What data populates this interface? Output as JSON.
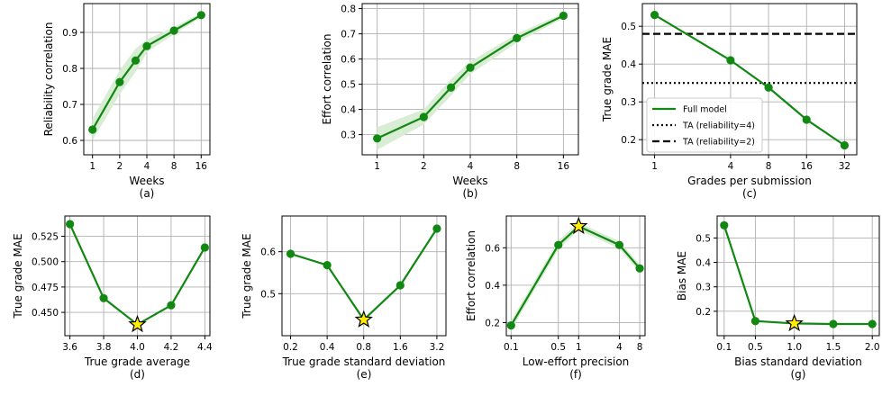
{
  "colors": {
    "line": "#118811",
    "band": "#d9ecd4",
    "grid": "#b0b0b0",
    "star_fill": "#ffee00",
    "star_edge": "#000000",
    "ref_line": "#000000"
  },
  "chart_data": [
    {
      "id": "a",
      "type": "line",
      "caption": "(a)",
      "xlabel": "Weeks",
      "ylabel": "Reliability correlation",
      "xscale": "log2",
      "xlim": [
        0.8,
        20
      ],
      "ylim": [
        0.56,
        0.98
      ],
      "xticks": [
        1,
        2,
        4,
        8,
        16
      ],
      "xtick_labels": [
        "1",
        "2",
        "4",
        "8",
        "16"
      ],
      "yticks": [
        0.6,
        0.7,
        0.8,
        0.9
      ],
      "ytick_labels": [
        "0.6",
        "0.7",
        "0.8",
        "0.9"
      ],
      "grid": true,
      "series": [
        {
          "x": [
            1,
            2,
            3,
            4,
            8,
            16
          ],
          "y": [
            0.63,
            0.762,
            0.822,
            0.862,
            0.905,
            0.948
          ],
          "band_low": [
            0.6,
            0.728,
            0.79,
            0.845,
            0.895,
            0.942
          ],
          "band_high": [
            0.66,
            0.795,
            0.855,
            0.88,
            0.915,
            0.954
          ]
        }
      ]
    },
    {
      "id": "b",
      "type": "line",
      "caption": "(b)",
      "xlabel": "Weeks",
      "ylabel": "Effort correlation",
      "xscale": "log2",
      "xlim": [
        0.8,
        20
      ],
      "ylim": [
        0.22,
        0.82
      ],
      "xticks": [
        1,
        2,
        4,
        8,
        16
      ],
      "xtick_labels": [
        "1",
        "2",
        "4",
        "8",
        "16"
      ],
      "yticks": [
        0.3,
        0.4,
        0.5,
        0.6,
        0.7,
        0.8
      ],
      "ytick_labels": [
        "0.3",
        "0.4",
        "0.5",
        "0.6",
        "0.7",
        "0.8"
      ],
      "grid": true,
      "series": [
        {
          "x": [
            1,
            2,
            3,
            4,
            8,
            16
          ],
          "y": [
            0.285,
            0.37,
            0.487,
            0.566,
            0.683,
            0.772
          ],
          "band_low": [
            0.24,
            0.34,
            0.455,
            0.54,
            0.665,
            0.762
          ],
          "band_high": [
            0.33,
            0.4,
            0.52,
            0.59,
            0.7,
            0.782
          ]
        }
      ]
    },
    {
      "id": "c",
      "type": "line",
      "caption": "(c)",
      "xlabel": "Grades per submission",
      "ylabel": "True grade MAE",
      "xscale": "log2",
      "xlim": [
        0.8,
        40
      ],
      "ylim": [
        0.16,
        0.56
      ],
      "xticks": [
        1,
        4,
        8,
        16,
        32
      ],
      "xtick_labels": [
        "1",
        "4",
        "8",
        "16",
        "32"
      ],
      "yticks": [
        0.2,
        0.3,
        0.4,
        0.5
      ],
      "ytick_labels": [
        "0.2",
        "0.3",
        "0.4",
        "0.5"
      ],
      "grid": true,
      "series": [
        {
          "name": "Full model",
          "x": [
            1,
            4,
            8,
            16,
            32
          ],
          "y": [
            0.53,
            0.41,
            0.338,
            0.253,
            0.185
          ]
        }
      ],
      "hlines": [
        {
          "name": "TA (reliability=4)",
          "y": 0.35,
          "style": "dotted"
        },
        {
          "name": "TA (reliability=2)",
          "y": 0.48,
          "style": "dashed"
        }
      ],
      "legend": "lower-left"
    },
    {
      "id": "d",
      "type": "line",
      "caption": "(d)",
      "xlabel": "True grade average",
      "ylabel": "True grade MAE",
      "xscale": "linear",
      "xlim": [
        3.57,
        4.43
      ],
      "ylim": [
        0.427,
        0.545
      ],
      "xticks": [
        3.6,
        3.8,
        4.0,
        4.2,
        4.4
      ],
      "xtick_labels": [
        "3.6",
        "3.8",
        "4.0",
        "4.2",
        "4.4"
      ],
      "yticks": [
        0.45,
        0.475,
        0.5,
        0.525
      ],
      "ytick_labels": [
        "0.450",
        "0.475",
        "0.500",
        "0.525"
      ],
      "grid": true,
      "series": [
        {
          "x": [
            3.6,
            3.8,
            4.0,
            4.2,
            4.4
          ],
          "y": [
            0.537,
            0.464,
            0.438,
            0.457,
            0.514
          ],
          "star_index": 2
        }
      ]
    },
    {
      "id": "e",
      "type": "line",
      "caption": "(e)",
      "xlabel": "True grade standard deviation",
      "ylabel": "True grade MAE",
      "xscale": "log2",
      "xlim": [
        0.17,
        3.8
      ],
      "ylim": [
        0.4,
        0.685
      ],
      "xticks": [
        0.2,
        0.4,
        0.8,
        1.6,
        3.2
      ],
      "xtick_labels": [
        "0.2",
        "0.4",
        "0.8",
        "1.6",
        "3.2"
      ],
      "yticks": [
        0.5,
        0.6
      ],
      "ytick_labels": [
        "0.5",
        "0.6"
      ],
      "grid": true,
      "series": [
        {
          "x": [
            0.2,
            0.4,
            0.8,
            1.6,
            3.2
          ],
          "y": [
            0.595,
            0.568,
            0.438,
            0.52,
            0.655
          ],
          "star_index": 2
        }
      ]
    },
    {
      "id": "f",
      "type": "line",
      "caption": "(f)",
      "xlabel": "Low-effort precision",
      "ylabel": "Effort correlation",
      "xscale": "log2",
      "xlim": [
        0.085,
        9.6
      ],
      "ylim": [
        0.13,
        0.77
      ],
      "xticks": [
        0.1,
        0.5,
        1,
        4,
        8
      ],
      "xtick_labels": [
        "0.1",
        "0.5",
        "1",
        "4",
        "8"
      ],
      "yticks": [
        0.2,
        0.4,
        0.6
      ],
      "ytick_labels": [
        "0.2",
        "0.4",
        "0.6"
      ],
      "grid": true,
      "series": [
        {
          "x": [
            0.1,
            0.5,
            1,
            4,
            8
          ],
          "y": [
            0.185,
            0.615,
            0.715,
            0.615,
            0.49
          ],
          "band_low": [
            0.16,
            0.59,
            0.695,
            0.595,
            0.47
          ],
          "band_high": [
            0.21,
            0.64,
            0.735,
            0.635,
            0.51
          ],
          "star_index": 2
        }
      ]
    },
    {
      "id": "g",
      "type": "line",
      "caption": "(g)",
      "xlabel": "Bias standard deviation",
      "ylabel": "Bias MAE",
      "xscale": "linear",
      "xlim": [
        0.01,
        2.09
      ],
      "ylim": [
        0.1,
        0.59
      ],
      "xticks": [
        0.1,
        0.5,
        1.0,
        1.5,
        2.0
      ],
      "xtick_labels": [
        "0.1",
        "0.5",
        "1.0",
        "1.5",
        "2.0"
      ],
      "yticks": [
        0.2,
        0.3,
        0.4,
        0.5
      ],
      "ytick_labels": [
        "0.2",
        "0.3",
        "0.4",
        "0.5"
      ],
      "grid": true,
      "series": [
        {
          "x": [
            0.1,
            0.5,
            1.0,
            1.5,
            2.0
          ],
          "y": [
            0.552,
            0.16,
            0.15,
            0.148,
            0.148
          ],
          "star_index": 2
        }
      ]
    }
  ]
}
